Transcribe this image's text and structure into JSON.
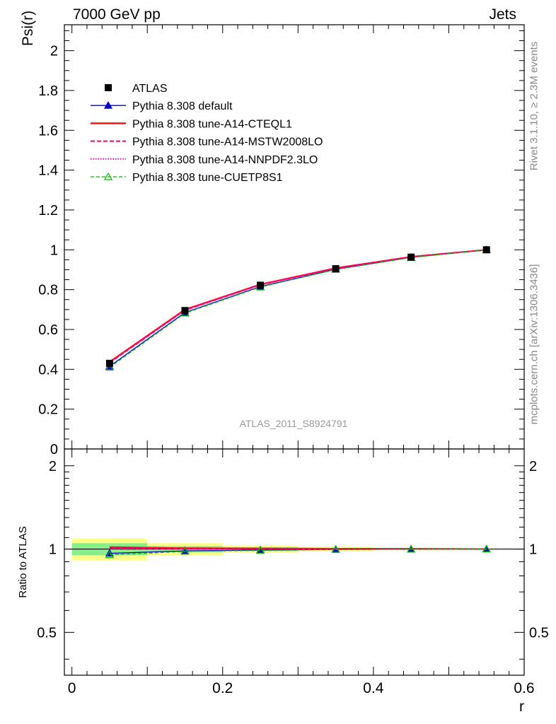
{
  "header": {
    "left": "7000 GeV pp",
    "right": "Jets"
  },
  "side": {
    "rivet": "Rivet 3.1.10, ≥ 2.3M events",
    "mcplots": "mcplots.cern.ch [arXiv:1306.3436]"
  },
  "watermark": "ATLAS_2011_S8924791",
  "colors": {
    "data": "#000000",
    "default": "#0000cc",
    "cteql1": "#ff0000",
    "mstw": "#ff0066",
    "nnpdf": "#ff00aa",
    "cuetp": "#00bb00",
    "band_green": "#88ee88",
    "band_yellow": "#ffff88"
  },
  "chart_data": [
    {
      "type": "line",
      "ylabel": "Psi(r)",
      "ylim": [
        0,
        2.13
      ],
      "yticks": [
        0,
        0.2,
        0.4,
        0.6,
        0.8,
        1,
        1.2,
        1.4,
        1.6,
        1.8,
        2
      ],
      "ytick_labels": [
        "0",
        "0.2",
        "0.4",
        "0.6",
        "0.8",
        "1",
        "1.2",
        "1.4",
        "1.6",
        "1.8",
        "2"
      ],
      "xlim": [
        -0.01,
        0.6
      ],
      "x": [
        0.05,
        0.15,
        0.25,
        0.35,
        0.45,
        0.55
      ],
      "legend_position": "top-left",
      "series": [
        {
          "name": "ATLAS",
          "key": "data",
          "style": "data",
          "values": [
            0.43,
            0.695,
            0.822,
            0.905,
            0.963,
            1.0
          ]
        },
        {
          "name": "Pythia 8.308 default",
          "key": "default",
          "style": "solid-triangle",
          "values": [
            0.415,
            0.685,
            0.815,
            0.902,
            0.962,
            1.0
          ]
        },
        {
          "name": "Pythia 8.308 tune-A14-CTEQL1",
          "key": "cteql1",
          "style": "solid",
          "values": [
            0.437,
            0.7,
            0.826,
            0.908,
            0.965,
            1.0
          ]
        },
        {
          "name": "Pythia 8.308 tune-A14-MSTW2008LO",
          "key": "mstw",
          "style": "dashed",
          "values": [
            0.433,
            0.697,
            0.824,
            0.907,
            0.964,
            1.0
          ]
        },
        {
          "name": "Pythia 8.308 tune-A14-NNPDF2.3LO",
          "key": "nnpdf",
          "style": "dotted",
          "values": [
            0.435,
            0.698,
            0.825,
            0.907,
            0.964,
            1.0
          ]
        },
        {
          "name": "Pythia 8.308 tune-CUETP8S1",
          "key": "cuetp",
          "style": "dashed-open-triangle",
          "values": [
            0.41,
            0.682,
            0.813,
            0.901,
            0.961,
            1.0
          ]
        }
      ]
    },
    {
      "type": "line",
      "ylabel": "Ratio to ATLAS",
      "xlabel": "r",
      "ylim": [
        0.35,
        2.3
      ],
      "log_scale": true,
      "yticks": [
        0.5,
        1,
        2
      ],
      "ytick_labels": [
        "0.5",
        "1",
        "2"
      ],
      "xlim": [
        -0.01,
        0.6
      ],
      "xticks": [
        0,
        0.2,
        0.4,
        0.6
      ],
      "xtick_labels": [
        "0",
        "0.2",
        "0.4",
        "0.6"
      ],
      "x": [
        0.05,
        0.15,
        0.25,
        0.35,
        0.45,
        0.55
      ],
      "bins": [
        [
          0,
          0.1
        ],
        [
          0.1,
          0.2
        ],
        [
          0.2,
          0.3
        ],
        [
          0.3,
          0.4
        ],
        [
          0.4,
          0.5
        ],
        [
          0.5,
          0.6
        ]
      ],
      "band_green": [
        [
          0.95,
          1.05
        ],
        [
          0.975,
          1.025
        ],
        [
          0.985,
          1.015
        ],
        [
          0.992,
          1.008
        ],
        [
          0.996,
          1.004
        ],
        [
          1.0,
          1.0
        ]
      ],
      "band_yellow": [
        [
          0.91,
          1.09
        ],
        [
          0.95,
          1.05
        ],
        [
          0.97,
          1.03
        ],
        [
          0.98,
          1.02
        ],
        [
          0.99,
          1.01
        ],
        [
          1.0,
          1.0
        ]
      ],
      "series": [
        {
          "key": "default",
          "style": "solid-triangle",
          "values": [
            0.965,
            0.985,
            0.992,
            0.997,
            0.999,
            1.0
          ]
        },
        {
          "key": "cteql1",
          "style": "solid",
          "values": [
            1.016,
            1.007,
            1.005,
            1.003,
            1.002,
            1.0
          ]
        },
        {
          "key": "mstw",
          "style": "dashed",
          "values": [
            1.007,
            1.003,
            1.002,
            1.002,
            1.001,
            1.0
          ]
        },
        {
          "key": "nnpdf",
          "style": "dotted",
          "values": [
            1.012,
            1.004,
            1.004,
            1.002,
            1.001,
            1.0
          ]
        },
        {
          "key": "cuetp",
          "style": "dashed-open-triangle",
          "values": [
            0.953,
            0.981,
            0.989,
            0.996,
            0.998,
            1.0
          ]
        }
      ]
    }
  ]
}
